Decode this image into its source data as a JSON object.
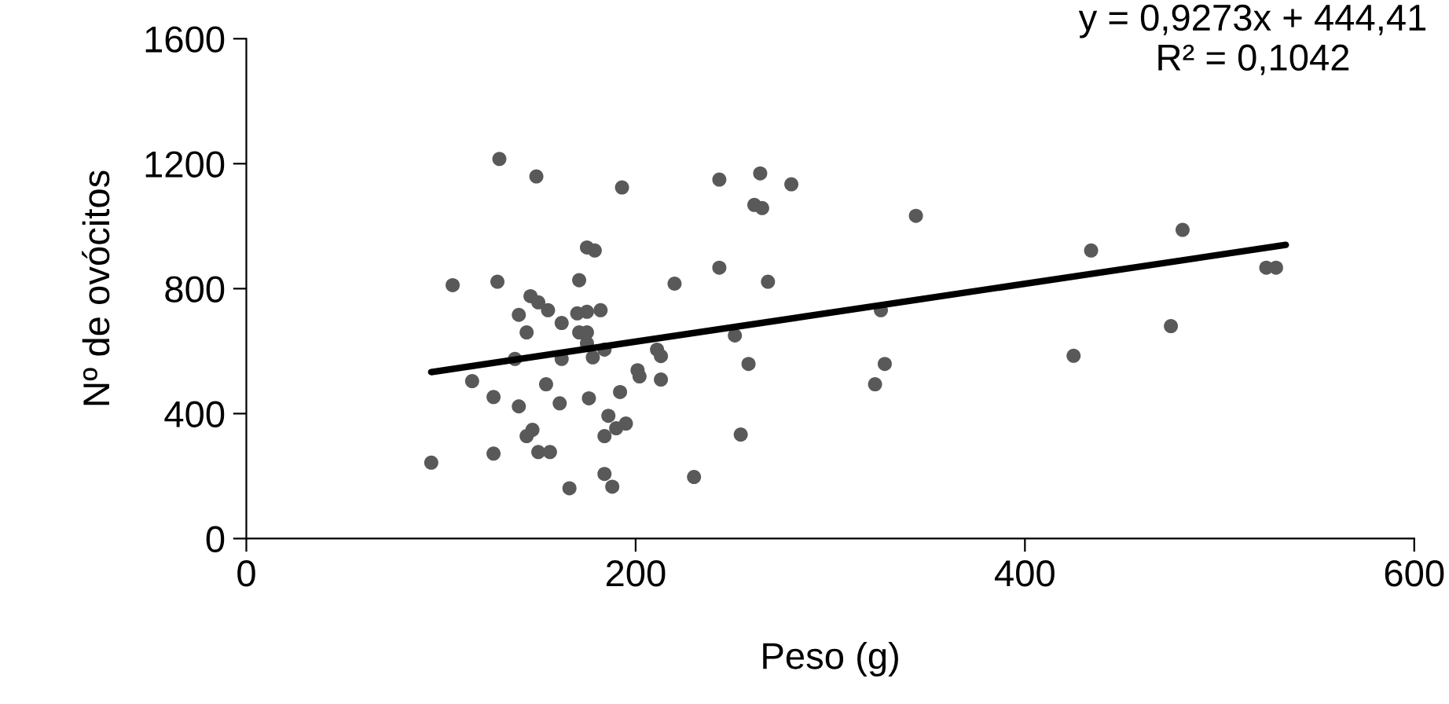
{
  "chart_data": {
    "type": "scatter",
    "xlabel": "Peso (g)",
    "ylabel": "Nº de ovócitos",
    "xlim": [
      0,
      600
    ],
    "xticks": [
      0,
      200,
      400,
      600
    ],
    "ylim": [
      0,
      1600
    ],
    "yticks": [
      0,
      400,
      800,
      1200,
      1600
    ],
    "grid": false,
    "annotations": [
      "y = 0,9273x + 444,41\nR² = 0,1042"
    ],
    "series": [
      {
        "color": "#595959",
        "marker": "circle",
        "x": [
          95,
          106,
          116,
          127,
          127,
          129,
          130,
          138,
          140,
          140,
          144,
          144,
          146,
          147,
          149,
          150,
          150,
          154,
          155,
          156,
          161,
          162,
          162,
          166,
          170,
          171,
          171,
          175,
          175,
          175,
          175,
          176,
          178,
          179,
          182,
          184,
          184,
          184,
          186,
          188,
          190,
          192,
          193,
          195,
          201,
          202,
          211,
          213,
          213,
          220,
          230,
          243,
          243,
          251,
          254,
          258,
          261,
          264,
          265,
          268,
          280,
          323,
          326,
          328,
          344,
          425,
          434,
          475,
          481,
          524,
          529
        ],
        "values": [
          243,
          811,
          504,
          272,
          453,
          822,
          1215,
          575,
          716,
          423,
          660,
          328,
          776,
          348,
          1159,
          277,
          756,
          494,
          731,
          277,
          433,
          575,
          690,
          161,
          721,
          660,
          827,
          726,
          660,
          625,
          932,
          449,
          580,
          922,
          731,
          605,
          328,
          207,
          393,
          166,
          353,
          469,
          1124,
          368,
          539,
          519,
          605,
          584,
          509,
          816,
          197,
          1149,
          867,
          650,
          333,
          559,
          1068,
          1169,
          1058,
          822,
          1134,
          494,
          731,
          559,
          1033,
          585,
          922,
          680,
          988,
          867,
          867
        ]
      },
      {
        "type": "line",
        "color": "#000000",
        "marker": "none",
        "x": [
          95,
          534
        ],
        "values": [
          533,
          940
        ]
      }
    ]
  }
}
